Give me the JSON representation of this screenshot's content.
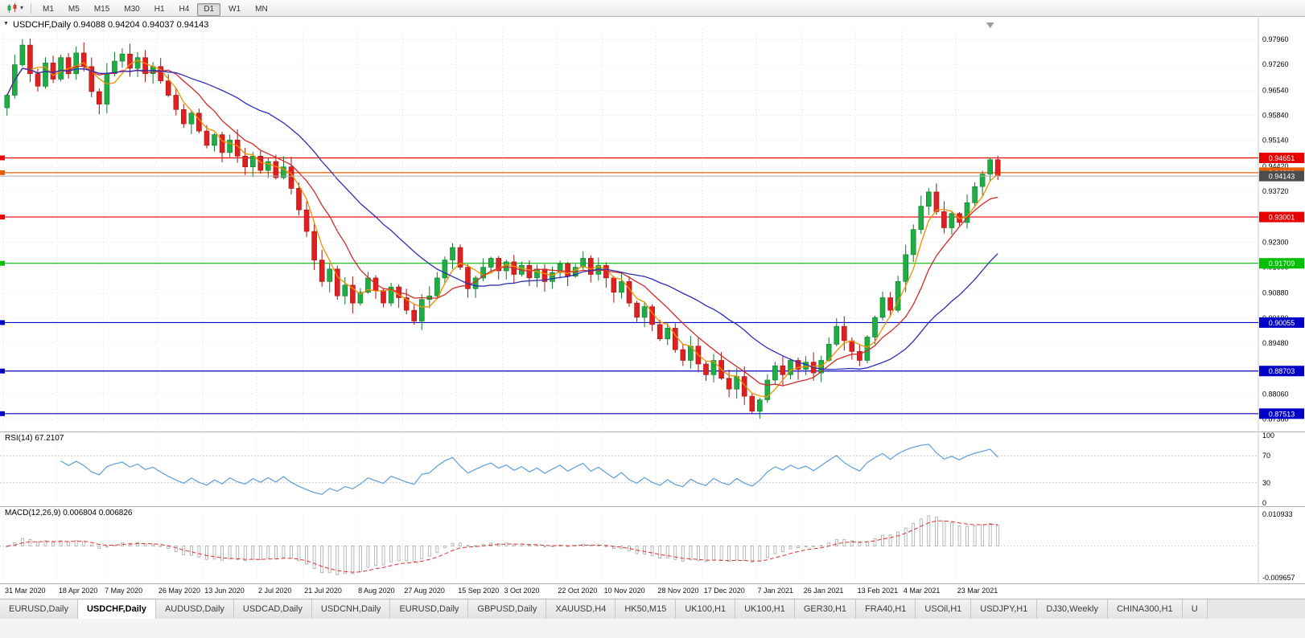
{
  "toolbar": {
    "timeframes": [
      "M1",
      "M5",
      "M15",
      "M30",
      "H1",
      "H4",
      "D1",
      "W1",
      "MN"
    ],
    "selected": "D1"
  },
  "chart": {
    "title": "USDCHF,Daily 0.94088 0.94204 0.94037 0.94143",
    "symbol": "USDCHF,Daily",
    "ohlc": {
      "open": "0.94088",
      "high": "0.94204",
      "low": "0.94037",
      "close": "0.94143"
    }
  },
  "chart_data": {
    "type": "candlestick",
    "symbol": "USDCHF",
    "timeframe": "Daily",
    "ylim": [
      0.8715,
      0.9825
    ],
    "y_ticks": [
      0.9796,
      0.9726,
      0.9654,
      0.9584,
      0.9514,
      0.9442,
      0.9372,
      0.9302,
      0.923,
      0.916,
      0.9088,
      0.9018,
      0.8948,
      0.8876,
      0.8806,
      0.8736
    ],
    "closes": [
      0.964,
      0.9725,
      0.978,
      0.97,
      0.9665,
      0.973,
      0.9685,
      0.9745,
      0.97,
      0.9758,
      0.972,
      0.965,
      0.9615,
      0.97,
      0.9735,
      0.9755,
      0.9715,
      0.9745,
      0.97,
      0.972,
      0.968,
      0.964,
      0.96,
      0.956,
      0.959,
      0.954,
      0.95,
      0.953,
      0.948,
      0.9515,
      0.947,
      0.944,
      0.947,
      0.943,
      0.9455,
      0.941,
      0.944,
      0.938,
      0.932,
      0.926,
      0.918,
      0.912,
      0.9155,
      0.908,
      0.911,
      0.906,
      0.909,
      0.913,
      0.9095,
      0.906,
      0.9105,
      0.9075,
      0.904,
      0.901,
      0.907,
      0.908,
      0.913,
      0.918,
      0.9215,
      0.916,
      0.91,
      0.913,
      0.916,
      0.9185,
      0.915,
      0.9175,
      0.914,
      0.9165,
      0.913,
      0.9155,
      0.912,
      0.9145,
      0.917,
      0.9135,
      0.916,
      0.9185,
      0.914,
      0.9165,
      0.913,
      0.909,
      0.912,
      0.906,
      0.902,
      0.905,
      0.9,
      0.896,
      0.899,
      0.893,
      0.89,
      0.894,
      0.889,
      0.886,
      0.89,
      0.885,
      0.882,
      0.8855,
      0.88,
      0.8758,
      0.879,
      0.8845,
      0.8885,
      0.886,
      0.89,
      0.8875,
      0.8895,
      0.8865,
      0.89,
      0.8945,
      0.8995,
      0.8955,
      0.8925,
      0.89,
      0.8965,
      0.902,
      0.9075,
      0.904,
      0.912,
      0.9195,
      0.9265,
      0.933,
      0.937,
      0.9315,
      0.927,
      0.931,
      0.9285,
      0.934,
      0.9385,
      0.942,
      0.946,
      0.94143
    ],
    "first_open": 0.9605,
    "wick_overrides": {
      "2": {
        "high": 0.9796
      },
      "53": {
        "low": 0.9
      },
      "97": {
        "low": 0.87513
      },
      "128": {
        "high": 0.9466
      }
    },
    "x_labels": [
      {
        "i": 0,
        "label": "31 Mar 2020"
      },
      {
        "i": 7,
        "label": "18 Apr 2020"
      },
      {
        "i": 13,
        "label": "7 May 2020"
      },
      {
        "i": 20,
        "label": "26 May 2020"
      },
      {
        "i": 26,
        "label": "13 Jun 2020"
      },
      {
        "i": 33,
        "label": "2 Jul 2020"
      },
      {
        "i": 39,
        "label": "21 Jul 2020"
      },
      {
        "i": 46,
        "label": "8 Aug 2020"
      },
      {
        "i": 52,
        "label": "27 Aug 2020"
      },
      {
        "i": 59,
        "label": "15 Sep 2020"
      },
      {
        "i": 65,
        "label": "3 Oct 2020"
      },
      {
        "i": 72,
        "label": "22 Oct 2020"
      },
      {
        "i": 78,
        "label": "10 Nov 2020"
      },
      {
        "i": 85,
        "label": "28 Nov 2020"
      },
      {
        "i": 91,
        "label": "17 Dec 2020"
      },
      {
        "i": 98,
        "label": "7 Jan 2021"
      },
      {
        "i": 104,
        "label": "26 Jan 2021"
      },
      {
        "i": 111,
        "label": "13 Feb 2021"
      },
      {
        "i": 117,
        "label": "4 Mar 2021"
      },
      {
        "i": 124,
        "label": "23 Mar 2021"
      }
    ],
    "ma_lines": [
      {
        "period": 4,
        "color": "#f09000",
        "name": "fast-ma"
      },
      {
        "period": 9,
        "color": "#d42a2a",
        "name": "mid-ma"
      },
      {
        "period": 22,
        "color": "#2d2db4",
        "name": "slow-ma"
      }
    ],
    "levels": [
      {
        "value": 0.94651,
        "color": "#e80000"
      },
      {
        "value": 0.94239,
        "color": "#e85d00"
      },
      {
        "value": 0.93001,
        "color": "#e80000"
      },
      {
        "value": 0.91709,
        "color": "#00c000"
      },
      {
        "value": 0.90055,
        "color": "#0000c8"
      },
      {
        "value": 0.88703,
        "color": "#0000c8"
      },
      {
        "value": 0.87513,
        "color": "#0000c8"
      }
    ],
    "current_price": 0.94143,
    "up_color": "#1fae43",
    "up_stroke": "#0c7a2a",
    "down_color": "#e02020",
    "down_stroke": "#a01414",
    "indicators": {
      "rsi": {
        "label": "RSI(14) 67.2107",
        "value": 67.2107,
        "levels": [
          100,
          70,
          30,
          0
        ],
        "color": "#5f9ed6"
      },
      "macd": {
        "label": "MACD(12,26,9) 0.006804 0.006826",
        "values_text": [
          "0.006804",
          "0.006826"
        ],
        "axis_top": "0.010933",
        "axis_bottom": "-0.009657",
        "bar_color": "#a8a8a8",
        "signal_color": "#e03030"
      }
    }
  },
  "tabs": [
    {
      "label": "EURUSD,Daily",
      "selected": false
    },
    {
      "label": "USDCHF,Daily",
      "selected": true
    },
    {
      "label": "AUDUSD,Daily",
      "selected": false
    },
    {
      "label": "USDCAD,Daily",
      "selected": false
    },
    {
      "label": "USDCNH,Daily",
      "selected": false
    },
    {
      "label": "EURUSD,Daily",
      "selected": false
    },
    {
      "label": "GBPUSD,Daily",
      "selected": false
    },
    {
      "label": "XAUUSD,H4",
      "selected": false
    },
    {
      "label": "HK50,M15",
      "selected": false
    },
    {
      "label": "UK100,H1",
      "selected": false
    },
    {
      "label": "UK100,H1",
      "selected": false
    },
    {
      "label": "GER30,H1",
      "selected": false
    },
    {
      "label": "FRA40,H1",
      "selected": false
    },
    {
      "label": "USOil,H1",
      "selected": false
    },
    {
      "label": "USDJPY,H1",
      "selected": false
    },
    {
      "label": "DJ30,Weekly",
      "selected": false
    },
    {
      "label": "CHINA300,H1",
      "selected": false
    },
    {
      "label": "U",
      "selected": false,
      "truncated": true
    }
  ]
}
